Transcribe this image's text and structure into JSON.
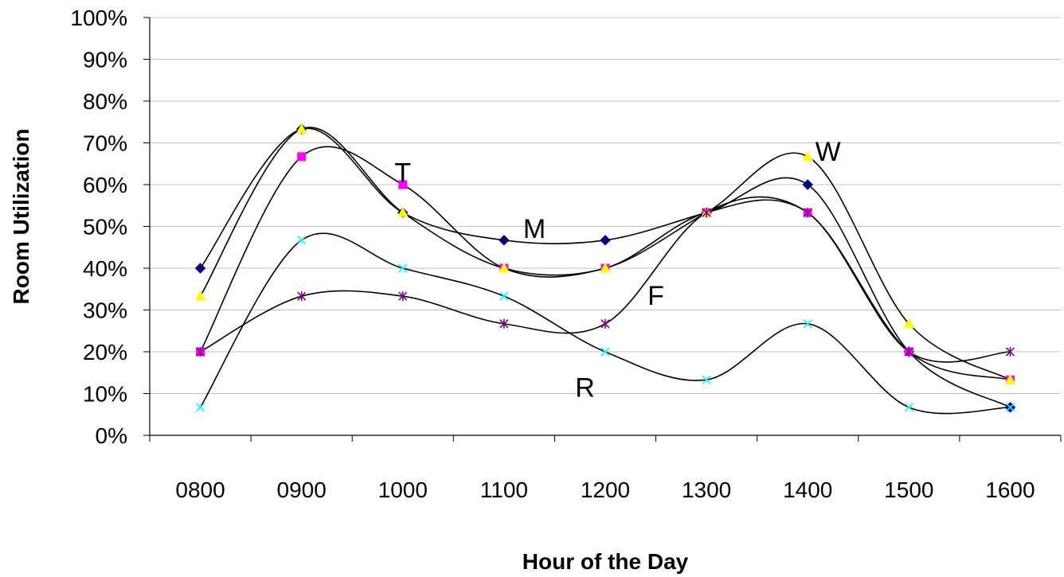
{
  "chart_data": {
    "type": "line",
    "title": "",
    "xlabel": "Hour of the Day",
    "ylabel": "Room Utilization",
    "categories": [
      "0800",
      "0900",
      "1000",
      "1100",
      "1200",
      "1300",
      "1400",
      "1500",
      "1600"
    ],
    "y_ticks": [
      "0%",
      "10%",
      "20%",
      "30%",
      "40%",
      "50%",
      "60%",
      "70%",
      "80%",
      "90%",
      "100%"
    ],
    "ylim": [
      0,
      100
    ],
    "grid": "horizontal",
    "legend": "none",
    "smoothed": true,
    "series": [
      {
        "name": "M",
        "color": "#000080",
        "marker": "diamond",
        "values": [
          40,
          73.3,
          53.3,
          46.7,
          46.7,
          53.3,
          60,
          20,
          6.7
        ]
      },
      {
        "name": "T",
        "color": "#FF00FF",
        "marker": "square",
        "values": [
          20,
          66.7,
          60,
          40,
          40,
          53.3,
          53.3,
          20,
          13.3
        ]
      },
      {
        "name": "W",
        "color": "#FFFF00",
        "marker": "triangle",
        "values": [
          33.3,
          73.3,
          53.3,
          40,
          40,
          53.3,
          66.7,
          26.7,
          13.3
        ]
      },
      {
        "name": "R",
        "color": "#00FFFF",
        "marker": "x",
        "values": [
          6.7,
          46.7,
          40,
          33.3,
          20,
          13.3,
          26.7,
          6.7,
          6.7
        ]
      },
      {
        "name": "F",
        "color": "#800080",
        "marker": "star",
        "values": [
          20,
          33.3,
          33.3,
          26.7,
          26.7,
          53.3,
          53.3,
          20,
          20
        ]
      }
    ],
    "annotations": [
      {
        "text": "T",
        "x": "1000",
        "y": 63
      },
      {
        "text": "M",
        "x": "1130",
        "y": 49.5
      },
      {
        "text": "W",
        "x": "1420",
        "y": 68
      },
      {
        "text": "F",
        "x": "1250",
        "y": 33.5
      },
      {
        "text": "R",
        "x": "1180",
        "y": 11.5
      }
    ]
  }
}
